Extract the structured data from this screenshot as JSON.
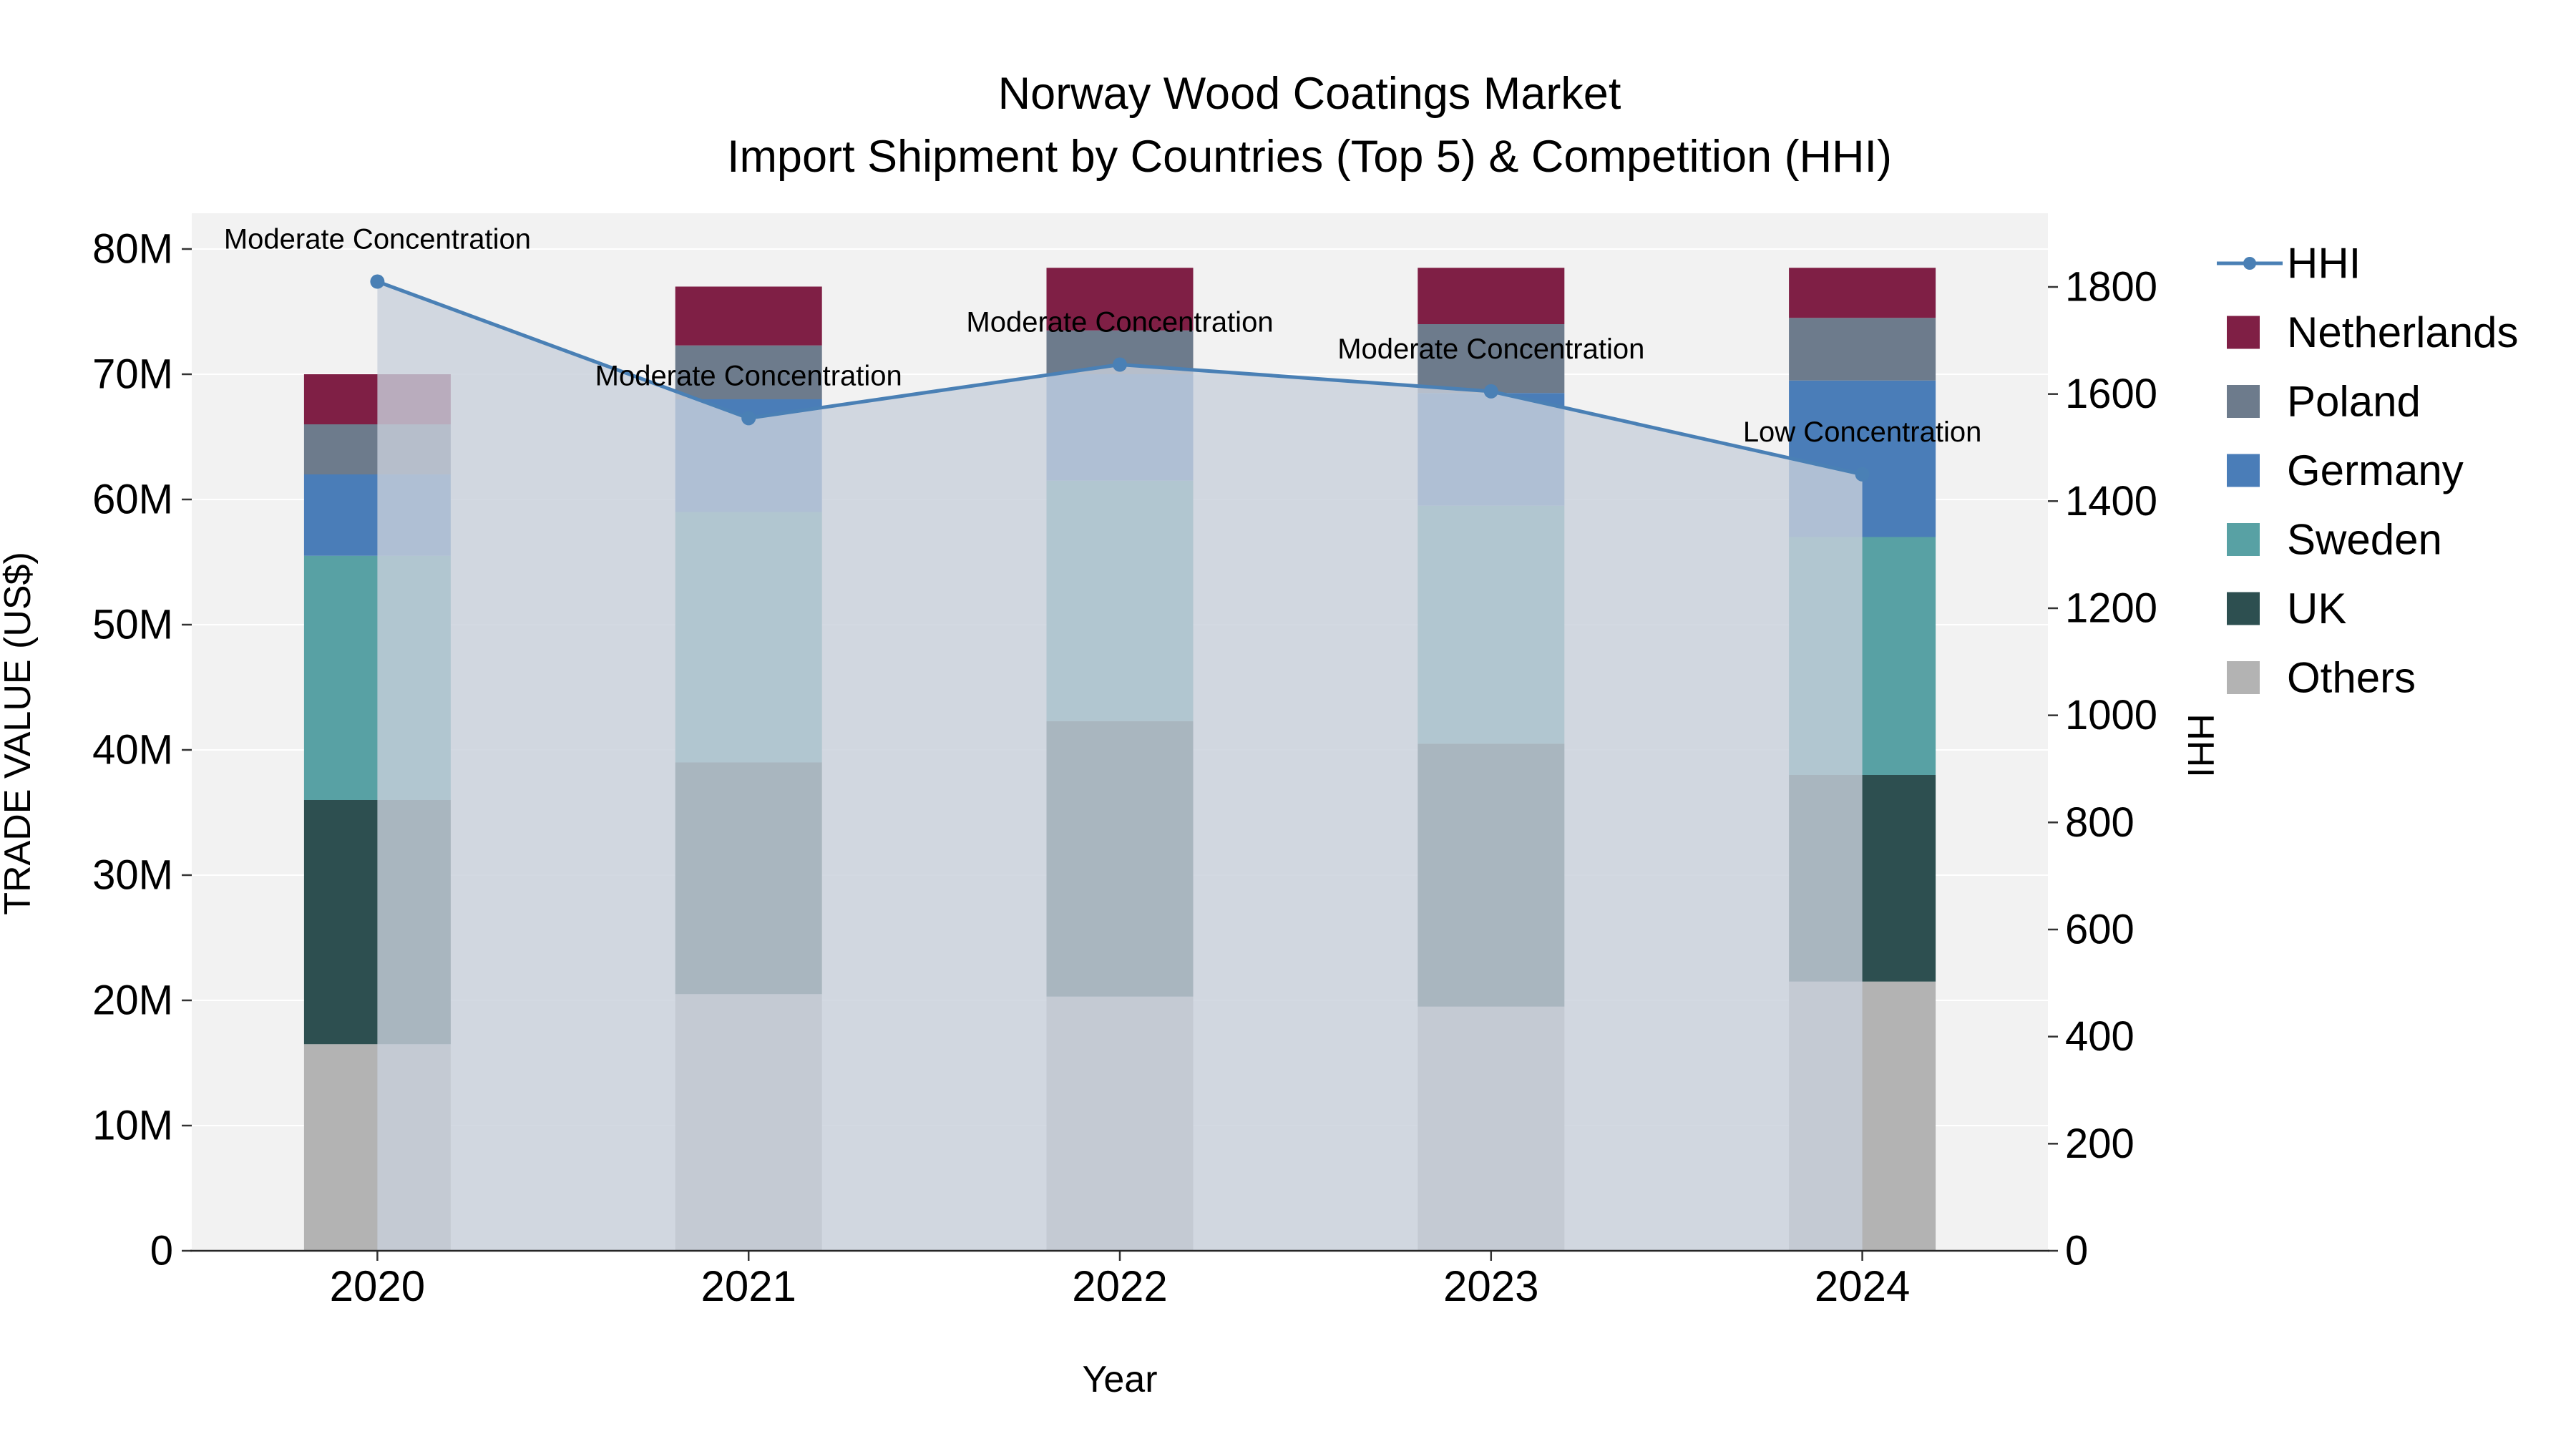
{
  "title": {
    "line1": "Norway Wood Coatings Market",
    "line2": "Import Shipment by Countries (Top 5) & Competition (HHI)"
  },
  "axes": {
    "y_left_label": "TRADE VALUE (US$)",
    "y_right_label": "HHI",
    "x_label": "Year"
  },
  "legend": {
    "items": [
      {
        "label": "HHI",
        "marker": "line",
        "color": "#4a80b5"
      },
      {
        "label": "Netherlands",
        "marker": "square",
        "color": "#7f1f45"
      },
      {
        "label": "Poland",
        "marker": "square",
        "color": "#6d7b8c"
      },
      {
        "label": "Germany",
        "marker": "square",
        "color": "#4a7db8"
      },
      {
        "label": "Sweden",
        "marker": "square",
        "color": "#58a1a4"
      },
      {
        "label": "UK",
        "marker": "square",
        "color": "#2d4f50"
      },
      {
        "label": "Others",
        "marker": "square",
        "color": "#b3b3b3"
      }
    ]
  },
  "chart_data": {
    "type": "bar",
    "subtype": "stacked-bars-with-hhi-line-area",
    "title": "Norway Wood Coatings Market — Import Shipment by Countries (Top 5) & Competition (HHI)",
    "categories": [
      "2020",
      "2021",
      "2022",
      "2023",
      "2024"
    ],
    "xlabel": "Year",
    "ylabel_left": "TRADE VALUE (US$)",
    "ylabel_right": "HHI",
    "y_left": {
      "min": 0,
      "max": 80,
      "unit": "M US$",
      "tick_labels": [
        "0",
        "10M",
        "20M",
        "30M",
        "40M",
        "50M",
        "60M",
        "70M",
        "80M"
      ]
    },
    "y_right": {
      "min": 0,
      "max": 1800,
      "tick_labels": [
        "0",
        "200",
        "400",
        "600",
        "800",
        "1000",
        "1200",
        "1400",
        "1600",
        "1800"
      ]
    },
    "series": [
      {
        "name": "Others",
        "color": "#b3b3b3",
        "values_musd": [
          16.5,
          20.5,
          20.3,
          19.5,
          21.5
        ]
      },
      {
        "name": "UK",
        "color": "#2d4f50",
        "values_musd": [
          19.5,
          18.5,
          22.0,
          21.0,
          16.5
        ]
      },
      {
        "name": "Sweden",
        "color": "#58a1a4",
        "values_musd": [
          19.5,
          20.0,
          19.2,
          19.0,
          19.0
        ]
      },
      {
        "name": "Germany",
        "color": "#4a7db8",
        "values_musd": [
          6.5,
          9.0,
          8.5,
          9.0,
          12.5
        ]
      },
      {
        "name": "Poland",
        "color": "#6d7b8c",
        "values_musd": [
          4.0,
          4.3,
          3.5,
          5.5,
          5.0
        ]
      },
      {
        "name": "Netherlands",
        "color": "#7f1f45",
        "values_musd": [
          4.0,
          4.7,
          5.0,
          4.5,
          4.0
        ]
      }
    ],
    "bar_totals_musd": [
      70.0,
      77.0,
      78.5,
      78.5,
      78.5
    ],
    "line_series": {
      "name": "HHI",
      "color": "#4a80b5",
      "area_fill": "rgba(200,207,219,0.8)",
      "values": [
        1810,
        1555,
        1655,
        1605,
        1450
      ]
    },
    "annotations": [
      {
        "x": "2020",
        "text": "Moderate Concentration"
      },
      {
        "x": "2021",
        "text": "Moderate Concentration"
      },
      {
        "x": "2022",
        "text": "Moderate Concentration"
      },
      {
        "x": "2023",
        "text": "Moderate Concentration"
      },
      {
        "x": "2024",
        "text": "Low Concentration"
      }
    ],
    "plot_bg": "#f2f2f2",
    "grid_color": "#ffffff",
    "legend_position": "right"
  }
}
